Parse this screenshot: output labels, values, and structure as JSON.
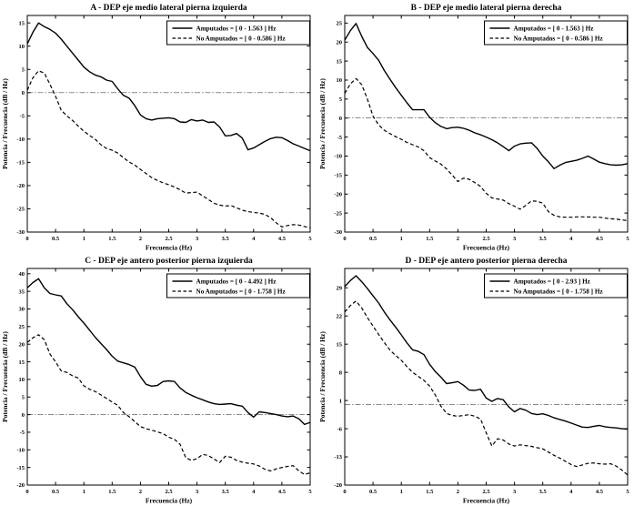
{
  "figure": {
    "background": "#ffffff",
    "line_color": "#000000",
    "refline_color": "#444444"
  },
  "chart_data": [
    {
      "id": "A",
      "type": "line",
      "title": "A - DEP eje medio lateral pierna izquierda",
      "xlabel": "Frecuencia (Hz)",
      "ylabel": "Potencia / Frecuencia (dB / Hz)",
      "xlim": [
        0,
        5
      ],
      "ylim": [
        -30,
        16.6
      ],
      "xticks": [
        0,
        0.5,
        1,
        1.5,
        2,
        2.5,
        3,
        3.5,
        4,
        4.5,
        5
      ],
      "yticks": [
        15,
        10,
        5,
        0,
        -5,
        -10,
        -15,
        -20,
        -25,
        -30
      ],
      "refline_y": 0,
      "grid": false,
      "legend_position": "top-right",
      "x": [
        0,
        0.1,
        0.2,
        0.3,
        0.4,
        0.5,
        0.6,
        0.7,
        0.8,
        0.9,
        1,
        1.1,
        1.2,
        1.3,
        1.4,
        1.5,
        1.6,
        1.7,
        1.8,
        1.9,
        2,
        2.1,
        2.2,
        2.3,
        2.4,
        2.5,
        2.6,
        2.7,
        2.8,
        2.9,
        3,
        3.1,
        3.2,
        3.3,
        3.4,
        3.5,
        3.6,
        3.7,
        3.8,
        3.9,
        4,
        4.1,
        4.2,
        4.3,
        4.4,
        4.5,
        4.6,
        4.7,
        4.8,
        4.9,
        5
      ],
      "series": [
        {
          "name": "Amputados",
          "label": "Amputados = [ 0 - 1.563 ] Hz",
          "style": "solid",
          "y": [
            10.5,
            13,
            15,
            14.2,
            13.6,
            12.8,
            11.5,
            10,
            8.5,
            7,
            5.5,
            4.5,
            3.8,
            3.4,
            2.7,
            2.4,
            0.8,
            -0.6,
            -1.2,
            -2.8,
            -4.8,
            -5.6,
            -5.9,
            -5.6,
            -5.5,
            -5.4,
            -5.6,
            -6.3,
            -6.4,
            -5.8,
            -6.1,
            -5.9,
            -6.4,
            -6.3,
            -7.4,
            -9.3,
            -9.2,
            -8.8,
            -9.8,
            -12.3,
            -11.9,
            -11.2,
            -10.5,
            -9.9,
            -9.6,
            -9.7,
            -10.3,
            -11,
            -11.5,
            -12,
            -12.5
          ]
        },
        {
          "name": "No Amputados",
          "label": "No Amputados = [ 0 - 0.586 ] Hz",
          "style": "dashed",
          "y": [
            0.5,
            3.2,
            4.7,
            4.2,
            1.8,
            -0.8,
            -3.8,
            -5,
            -6,
            -7.2,
            -8.3,
            -9.2,
            -10,
            -11.2,
            -12,
            -12.4,
            -13,
            -14,
            -14.9,
            -15.6,
            -16.5,
            -17.4,
            -18.3,
            -18.9,
            -19.4,
            -19.8,
            -20.3,
            -20.9,
            -21.6,
            -21.5,
            -21.4,
            -22.2,
            -23,
            -23.8,
            -24.2,
            -24.4,
            -24.3,
            -24.8,
            -25.3,
            -25.6,
            -25.8,
            -25.9,
            -26.2,
            -26.9,
            -28,
            -28.9,
            -28.6,
            -28.4,
            -28.5,
            -28.8,
            -29.1
          ]
        }
      ]
    },
    {
      "id": "B",
      "type": "line",
      "title": "B - DEP eje medio lateral pierna derecha",
      "xlabel": "Frecuencia (Hz)",
      "ylabel": "Potencia / Frecuencia (dB / Hz)",
      "xlim": [
        0,
        5
      ],
      "ylim": [
        -30,
        27
      ],
      "xticks": [
        0,
        0.5,
        1,
        1.5,
        2,
        2.5,
        3,
        3.5,
        4,
        4.5,
        5
      ],
      "yticks": [
        25,
        20,
        15,
        10,
        5,
        0,
        -5,
        -10,
        -15,
        -20,
        -25,
        -30
      ],
      "refline_y": 0,
      "grid": false,
      "legend_position": "top-right",
      "x": [
        0,
        0.1,
        0.2,
        0.3,
        0.4,
        0.5,
        0.6,
        0.7,
        0.8,
        0.9,
        1,
        1.1,
        1.2,
        1.3,
        1.4,
        1.5,
        1.6,
        1.7,
        1.8,
        1.9,
        2,
        2.1,
        2.2,
        2.3,
        2.4,
        2.5,
        2.6,
        2.7,
        2.8,
        2.9,
        3,
        3.1,
        3.2,
        3.3,
        3.4,
        3.5,
        3.6,
        3.7,
        3.8,
        3.9,
        4,
        4.1,
        4.2,
        4.3,
        4.4,
        4.5,
        4.6,
        4.7,
        4.8,
        4.9,
        5
      ],
      "series": [
        {
          "name": "Amputados",
          "label": "Amputados = [ 0 - 1.563 ] Hz",
          "style": "solid",
          "y": [
            20.5,
            23,
            24.9,
            21.5,
            18.6,
            17,
            15.2,
            12.5,
            10.2,
            8,
            6,
            4,
            2.2,
            2.2,
            2.2,
            0.2,
            -1.2,
            -2.2,
            -2.8,
            -2.5,
            -2.4,
            -2.7,
            -3.2,
            -3.9,
            -4.4,
            -5,
            -5.7,
            -6.5,
            -7.5,
            -8.6,
            -7.4,
            -6.8,
            -6.6,
            -6.5,
            -8,
            -10,
            -11.5,
            -13.3,
            -12.4,
            -11.7,
            -11.4,
            -11.1,
            -10.6,
            -10,
            -10.8,
            -11.6,
            -12,
            -12.3,
            -12.4,
            -12.3,
            -12
          ]
        },
        {
          "name": "No Amputados",
          "label": "No Amputados = [ 0 - 0.586 ] Hz",
          "style": "dashed",
          "y": [
            6.5,
            9,
            10.4,
            8.8,
            5,
            0.5,
            -1.8,
            -3.2,
            -4.1,
            -4.9,
            -5.6,
            -6.4,
            -7,
            -7.6,
            -8.6,
            -10.4,
            -11.3,
            -12.1,
            -13.4,
            -15,
            -16.7,
            -15.8,
            -16.1,
            -17,
            -18,
            -19.8,
            -21,
            -21.3,
            -21.6,
            -22.5,
            -23.2,
            -24,
            -23,
            -21.8,
            -21.9,
            -22.4,
            -24.6,
            -25.6,
            -26,
            -26.1,
            -26.1,
            -26,
            -26,
            -26,
            -26.1,
            -26.1,
            -26.3,
            -26.5,
            -26.6,
            -26.8,
            -27
          ]
        }
      ]
    },
    {
      "id": "C",
      "type": "line",
      "title": "C - DEP eje antero posterior pierna izquierda",
      "xlabel": "Frecuencia (Hz)",
      "ylabel": "Potencia / Frecuencia (dB / Hz)",
      "xlim": [
        0,
        5
      ],
      "ylim": [
        -20,
        41.5
      ],
      "xticks": [
        0,
        0.5,
        1,
        1.5,
        2,
        2.5,
        3,
        3.5,
        4,
        4.5,
        5
      ],
      "yticks": [
        40,
        35,
        30,
        25,
        20,
        15,
        10,
        5,
        0,
        -5,
        -10,
        -15,
        -20
      ],
      "refline_y": 0,
      "grid": false,
      "legend_position": "top-right",
      "x": [
        0,
        0.1,
        0.2,
        0.3,
        0.4,
        0.5,
        0.6,
        0.7,
        0.8,
        0.9,
        1,
        1.1,
        1.2,
        1.3,
        1.4,
        1.5,
        1.6,
        1.7,
        1.8,
        1.9,
        2,
        2.1,
        2.2,
        2.3,
        2.4,
        2.5,
        2.6,
        2.7,
        2.8,
        2.9,
        3,
        3.1,
        3.2,
        3.3,
        3.4,
        3.5,
        3.6,
        3.7,
        3.8,
        3.9,
        4,
        4.1,
        4.2,
        4.3,
        4.4,
        4.5,
        4.6,
        4.7,
        4.8,
        4.9,
        5
      ],
      "series": [
        {
          "name": "Amputados",
          "label": "Amputados = [ 0 - 4.492 ] Hz",
          "style": "solid",
          "y": [
            36,
            37.5,
            38.6,
            36,
            34.4,
            34,
            33.7,
            31.5,
            29.8,
            27.8,
            26,
            24,
            22,
            20.2,
            18.5,
            16.6,
            15.2,
            14.7,
            14.2,
            13.5,
            10.8,
            8.6,
            8.1,
            8.3,
            9.4,
            9.6,
            9.4,
            7.6,
            6.3,
            5.5,
            4.8,
            4.2,
            3.6,
            3.1,
            2.9,
            3,
            3.1,
            2.7,
            2.4,
            0.6,
            -0.7,
            0.8,
            0.6,
            0.3,
            0,
            -0.4,
            -0.6,
            -0.4,
            -1.2,
            -2.8,
            -2.2
          ]
        },
        {
          "name": "No Amputados",
          "label": "No Amputados = [ 0 - 1.758 ] Hz",
          "style": "dashed",
          "y": [
            20.5,
            21.8,
            22.7,
            21.3,
            17.2,
            15,
            12.4,
            12,
            11,
            10.4,
            8.2,
            7.2,
            6.6,
            5.6,
            4.6,
            3.6,
            2.6,
            0.6,
            -0.6,
            -2,
            -3.4,
            -4,
            -4.4,
            -4.9,
            -5.4,
            -6.4,
            -7,
            -8.4,
            -12.2,
            -13,
            -12.5,
            -11.3,
            -11.6,
            -12.6,
            -13.6,
            -11.8,
            -12.1,
            -13,
            -13.5,
            -13.8,
            -14,
            -14.6,
            -15.5,
            -16,
            -15.4,
            -15,
            -14.7,
            -14.5,
            -16,
            -17,
            -16.5
          ]
        }
      ]
    },
    {
      "id": "D",
      "type": "line",
      "title": "D - DEP eje antero posterior pierna derecha",
      "xlabel": "Frecuencia (Hz)",
      "ylabel": "Potencia / Frecuencia (dB / Hz)",
      "xlim": [
        0,
        5
      ],
      "ylim": [
        -20,
        33.8
      ],
      "xticks": [
        0,
        0.5,
        1,
        1.5,
        2,
        2.5,
        3,
        3.5,
        4,
        4.5,
        5
      ],
      "yticks": [
        29,
        22,
        15,
        8,
        1,
        -6,
        -13,
        -20
      ],
      "refline_y": 0,
      "grid": false,
      "legend_position": "top-right",
      "x": [
        0,
        0.1,
        0.2,
        0.3,
        0.4,
        0.5,
        0.6,
        0.7,
        0.8,
        0.9,
        1,
        1.1,
        1.2,
        1.3,
        1.4,
        1.5,
        1.6,
        1.7,
        1.8,
        1.9,
        2,
        2.1,
        2.2,
        2.3,
        2.4,
        2.5,
        2.6,
        2.7,
        2.8,
        2.9,
        3,
        3.1,
        3.2,
        3.3,
        3.4,
        3.5,
        3.6,
        3.7,
        3.8,
        3.9,
        4,
        4.1,
        4.2,
        4.3,
        4.4,
        4.5,
        4.6,
        4.7,
        4.8,
        4.9,
        5
      ],
      "series": [
        {
          "name": "Amputados",
          "label": "Amputados = [ 0 - 2.93 ] Hz",
          "style": "solid",
          "y": [
            29.3,
            30.8,
            32,
            30.5,
            28.8,
            27,
            25.2,
            23,
            21,
            19.2,
            17.3,
            15.3,
            13.6,
            13.2,
            12.4,
            10,
            8.2,
            6.8,
            5.2,
            5.4,
            5.7,
            4.8,
            3.6,
            3.5,
            3.8,
            1.6,
            0.8,
            1.5,
            1.2,
            -0.6,
            -1.8,
            -1,
            -1.4,
            -2.2,
            -2.5,
            -2.3,
            -2.7,
            -3.3,
            -3.7,
            -4.1,
            -4.6,
            -5.1,
            -5.6,
            -5.7,
            -5.4,
            -5.2,
            -5.5,
            -5.7,
            -5.8,
            -6,
            -6.1
          ]
        },
        {
          "name": "No Amputados",
          "label": "No Amputados = [ 0 - 1.758 ] Hz",
          "style": "dashed",
          "y": [
            23,
            24.6,
            25.7,
            24,
            21.6,
            19.5,
            17.4,
            15.4,
            13.5,
            12.2,
            11,
            9.4,
            8,
            7,
            6,
            4.6,
            2.4,
            -0.4,
            -2.2,
            -2.7,
            -2.9,
            -2.7,
            -2.5,
            -2.9,
            -3.6,
            -7,
            -10.3,
            -8.5,
            -8.8,
            -9.8,
            -10.3,
            -10,
            -10.2,
            -10.4,
            -10.7,
            -11,
            -11.8,
            -12.6,
            -13.3,
            -14.1,
            -14.9,
            -15.4,
            -15,
            -14.6,
            -14.5,
            -14.7,
            -14.8,
            -14.7,
            -15.3,
            -16.3,
            -17.5
          ]
        }
      ]
    }
  ]
}
